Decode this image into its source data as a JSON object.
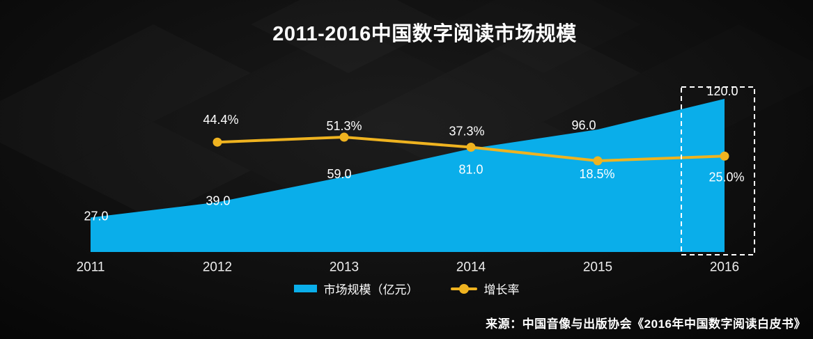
{
  "title": "2011-2016中国数字阅读市场规模",
  "legend": {
    "market_label": "市场规模（亿元）",
    "growth_label": "增长率"
  },
  "source": "来源：中国音像与出版协会《2016年中国数字阅读白皮书》",
  "colors": {
    "area": "#0aaeea",
    "line": "#efb320",
    "label_text": "#ffffff",
    "highlight_border": "#ffffff",
    "background": "#0a0a0a"
  },
  "chart_data": {
    "type": "area",
    "categories": [
      "2011",
      "2012",
      "2013",
      "2014",
      "2015",
      "2016"
    ],
    "series": [
      {
        "name": "市场规模（亿元）",
        "type": "area",
        "color": "#0aaeea",
        "values": [
          27.0,
          39.0,
          59.0,
          81.0,
          96.0,
          120.0
        ],
        "labels": [
          "27.0",
          "39.0",
          "59.0",
          "81.0",
          "96.0",
          "120.0"
        ]
      },
      {
        "name": "增长率",
        "type": "line",
        "color": "#efb320",
        "values": [
          null,
          44.4,
          51.3,
          37.3,
          18.5,
          25.0
        ],
        "labels": [
          null,
          "44.4%",
          "51.3%",
          "37.3%",
          "18.5%",
          "25.0%"
        ]
      }
    ],
    "highlight_category": "2016",
    "xlabel": "",
    "ylabel": "",
    "grid": false,
    "legend_position": "bottom"
  }
}
